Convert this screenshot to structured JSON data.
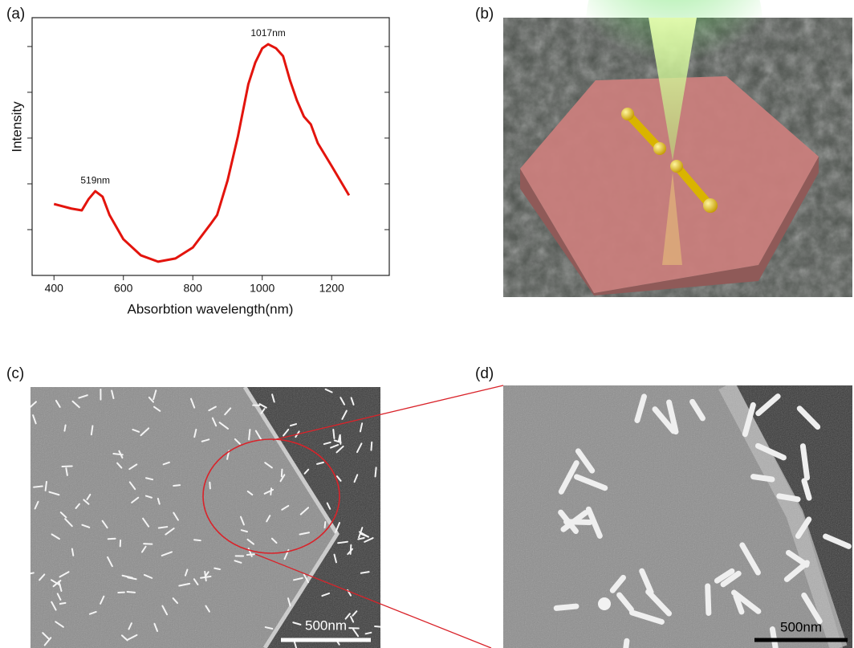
{
  "chart_data": {
    "type": "line",
    "x_label": "Absorbtion wavelength(nm)",
    "y_label": "Intensity",
    "x": [
      400,
      450,
      480,
      500,
      519,
      540,
      560,
      600,
      650,
      700,
      750,
      800,
      850,
      870,
      900,
      930,
      960,
      980,
      1000,
      1017,
      1040,
      1060,
      1080,
      1100,
      1120,
      1140,
      1160,
      1200,
      1250
    ],
    "series": [
      {
        "color": "#e3140d",
        "values": [
          1.56,
          1.46,
          1.42,
          1.67,
          1.84,
          1.72,
          1.32,
          0.79,
          0.44,
          0.3,
          0.37,
          0.61,
          1.11,
          1.32,
          2.07,
          3.04,
          4.18,
          4.65,
          4.96,
          5.05,
          4.96,
          4.79,
          4.26,
          3.82,
          3.47,
          3.3,
          2.89,
          2.39,
          1.75
        ]
      }
    ],
    "xlim": [
      337,
      1366
    ],
    "xticks": [
      400,
      600,
      800,
      1000,
      1200
    ],
    "ylim": [
      0,
      5.63
    ],
    "yticks": [
      1,
      2,
      3,
      4,
      5
    ],
    "annotations": [
      {
        "text": "519nm",
        "x": 519,
        "y": 1.84
      },
      {
        "text": "1017nm",
        "x": 1017,
        "y": 5.05
      }
    ]
  },
  "panel_labels": [
    "(a)",
    "(b)",
    "(c)",
    "(d)"
  ],
  "scale_bars": [
    "500nm",
    "500nm"
  ]
}
